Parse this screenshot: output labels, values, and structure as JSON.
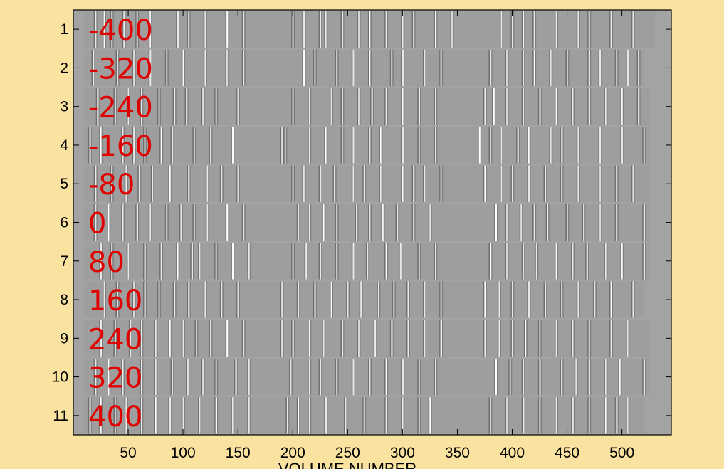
{
  "chart_data": {
    "type": "heatmap",
    "xlabel": "VOLUME NUMBER",
    "xlim": [
      0,
      545
    ],
    "x_ticks": [
      50,
      100,
      150,
      200,
      250,
      300,
      350,
      400,
      450,
      500
    ],
    "y_ticks": [
      1,
      2,
      3,
      4,
      5,
      6,
      7,
      8,
      9,
      10,
      11
    ],
    "row_labels": [
      "-400",
      "-320",
      "-240",
      "-160",
      "-80",
      "0",
      "80",
      "160",
      "240",
      "320",
      "400"
    ],
    "rows": [
      {
        "range": [
          10,
          530
        ],
        "events": [
          20,
          28,
          35,
          46,
          58,
          70,
          95,
          105,
          120,
          140,
          155,
          200,
          210,
          225,
          230,
          245,
          260,
          270,
          285,
          300,
          310,
          330,
          345,
          390,
          400,
          410,
          420,
          440,
          460,
          470,
          490,
          510
        ]
      },
      {
        "range": [
          10,
          520
        ],
        "events": [
          18,
          40,
          55,
          70,
          85,
          100,
          120,
          140,
          155,
          210,
          220,
          240,
          255,
          270,
          290,
          300,
          320,
          335,
          380,
          395,
          410,
          420,
          435,
          450,
          470,
          480,
          495,
          505,
          515
        ]
      },
      {
        "range": [
          10,
          525
        ],
        "events": [
          22,
          38,
          50,
          62,
          78,
          92,
          103,
          118,
          130,
          150,
          200,
          215,
          235,
          245,
          260,
          272,
          285,
          300,
          315,
          330,
          375,
          383,
          395,
          410,
          425,
          440,
          455,
          470,
          485,
          500,
          515
        ]
      },
      {
        "range": [
          10,
          525
        ],
        "events": [
          15,
          25,
          45,
          55,
          65,
          80,
          90,
          110,
          125,
          145,
          190,
          193,
          215,
          230,
          245,
          255,
          270,
          280,
          300,
          315,
          330,
          370,
          380,
          390,
          405,
          415,
          435,
          445,
          460,
          480,
          500,
          520
        ]
      },
      {
        "range": [
          10,
          525
        ],
        "events": [
          20,
          35,
          48,
          60,
          72,
          88,
          105,
          122,
          135,
          150,
          200,
          210,
          225,
          238,
          255,
          265,
          280,
          300,
          310,
          320,
          335,
          375,
          390,
          400,
          415,
          430,
          445,
          460,
          480,
          495,
          510
        ]
      },
      {
        "range": [
          10,
          525
        ],
        "events": [
          20,
          32,
          45,
          58,
          70,
          85,
          98,
          110,
          122,
          140,
          155,
          205,
          215,
          228,
          240,
          258,
          270,
          282,
          295,
          310,
          325,
          385,
          395,
          408,
          420,
          432,
          450,
          465,
          480,
          495,
          520
        ]
      },
      {
        "range": [
          10,
          525
        ],
        "events": [
          25,
          35,
          50,
          65,
          80,
          95,
          108,
          115,
          130,
          145,
          160,
          200,
          212,
          225,
          240,
          255,
          268,
          285,
          298,
          315,
          330,
          380,
          395,
          410,
          422,
          440,
          455,
          468,
          485,
          500,
          520
        ]
      },
      {
        "range": [
          10,
          520
        ],
        "events": [
          28,
          40,
          55,
          65,
          78,
          92,
          105,
          120,
          135,
          150,
          190,
          205,
          220,
          235,
          250,
          262,
          278,
          292,
          305,
          320,
          335,
          375,
          388,
          400,
          415,
          430,
          445,
          460,
          475,
          490,
          510
        ]
      },
      {
        "range": [
          10,
          525
        ],
        "events": [
          25,
          38,
          52,
          62,
          75,
          88,
          100,
          112,
          125,
          140,
          155,
          190,
          200,
          215,
          228,
          245,
          260,
          275,
          290,
          305,
          320,
          335,
          375,
          388,
          400,
          412,
          425,
          440,
          455,
          470,
          490,
          505
        ]
      },
      {
        "range": [
          10,
          525
        ],
        "events": [
          20,
          32,
          45,
          62,
          75,
          90,
          104,
          118,
          130,
          148,
          160,
          198,
          215,
          225,
          240,
          255,
          270,
          285,
          300,
          315,
          330,
          385,
          398,
          410,
          425,
          445,
          458,
          470,
          485,
          498,
          520
        ]
      },
      {
        "range": [
          10,
          520
        ],
        "events": [
          15,
          25,
          38,
          48,
          62,
          75,
          88,
          100,
          115,
          130,
          145,
          160,
          195,
          205,
          215,
          230,
          248,
          265,
          285,
          300,
          315,
          325,
          380,
          395,
          410,
          425,
          440,
          455,
          470,
          485,
          495,
          505
        ]
      }
    ],
    "background_color": "#a3a3a3",
    "page_color": "#fae3a0",
    "label_color": "#e00000"
  }
}
